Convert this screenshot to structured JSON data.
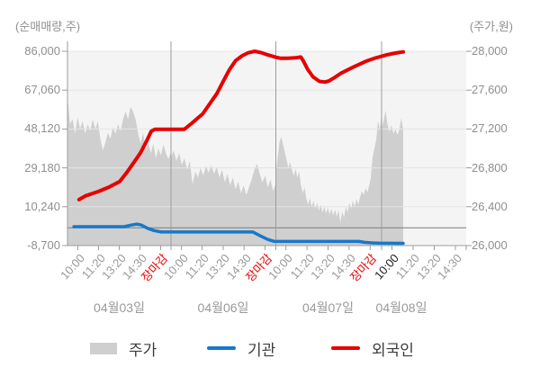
{
  "header": {
    "left_axis_title": "(순매매량,주)",
    "right_axis_title": "(주가,원)"
  },
  "legend": {
    "items": [
      {
        "label": "주가",
        "type": "area",
        "color": "#cfcfcf"
      },
      {
        "label": "기관",
        "type": "line",
        "color": "#1878c8"
      },
      {
        "label": "외국인",
        "type": "line",
        "color": "#e60000"
      }
    ]
  },
  "chart_data": {
    "type": "area+line",
    "title": "",
    "left_axis": {
      "title": "(순매매량,주)",
      "unit": "주",
      "min": -8700,
      "max": 86000,
      "ticks": [
        86000,
        67060,
        48120,
        29180,
        10240,
        -8700
      ]
    },
    "right_axis": {
      "title": "(주가,원)",
      "unit": "원",
      "min": 26000,
      "max": 28000,
      "ticks": [
        28000,
        27600,
        27200,
        26800,
        26400,
        26000
      ]
    },
    "zero_line_value": 0,
    "grid": true,
    "legend_position": "bottom",
    "x_ticks": [
      {
        "u": 0.026,
        "label": "10:00",
        "emphasis": "normal"
      },
      {
        "u": 0.0779,
        "label": "11:20",
        "emphasis": "normal"
      },
      {
        "u": 0.1298,
        "label": "13:20",
        "emphasis": "normal"
      },
      {
        "u": 0.1817,
        "label": "14:30",
        "emphasis": "normal"
      },
      {
        "u": 0.2336,
        "label": "장마감",
        "emphasis": "close"
      },
      {
        "u": 0.2858,
        "label": "10:00",
        "emphasis": "normal"
      },
      {
        "u": 0.3377,
        "label": "11:20",
        "emphasis": "normal"
      },
      {
        "u": 0.3905,
        "label": "13:20",
        "emphasis": "normal"
      },
      {
        "u": 0.4429,
        "label": "14:30",
        "emphasis": "normal"
      },
      {
        "u": 0.4953,
        "label": "장마감",
        "emphasis": "close"
      },
      {
        "u": 0.5478,
        "label": "10:00",
        "emphasis": "normal"
      },
      {
        "u": 0.6007,
        "label": "11:20",
        "emphasis": "normal"
      },
      {
        "u": 0.6535,
        "label": "13:20",
        "emphasis": "normal"
      },
      {
        "u": 0.7063,
        "label": "14:30",
        "emphasis": "normal"
      },
      {
        "u": 0.7591,
        "label": "장마감",
        "emphasis": "close"
      },
      {
        "u": 0.8137,
        "label": "10:00",
        "emphasis": "current"
      },
      {
        "u": 0.8668,
        "label": "11:20",
        "emphasis": "normal"
      },
      {
        "u": 0.9199,
        "label": "13:20",
        "emphasis": "normal"
      },
      {
        "u": 0.973,
        "label": "14:30",
        "emphasis": "normal"
      }
    ],
    "dates": [
      {
        "u": 0.1298,
        "label": "04월03일"
      },
      {
        "u": 0.3905,
        "label": "04월06일"
      },
      {
        "u": 0.6535,
        "label": "04월07일"
      },
      {
        "u": 0.8375,
        "label": "04월08일"
      }
    ],
    "day_separators_u": [
      0.2596,
      0.5226,
      0.7878
    ],
    "data_end_u": 0.842,
    "series": {
      "price": {
        "name": "주가",
        "axis": "right",
        "fill": "#cfcfcf",
        "days": [
          {
            "u0": 0.0,
            "u1": 0.2596,
            "values": [
              27530,
              27250,
              27300,
              27150,
              27320,
              27200,
              27280,
              27150,
              27250,
              27180,
              27300,
              27200,
              27280,
              27100,
              26980,
              27060,
              27160,
              27100,
              27220,
              27150,
              27250,
              27180,
              27300,
              27380,
              27300,
              27430,
              27380,
              27300,
              27150,
              27050,
              27160,
              26980,
              27060,
              26950,
              27050,
              26900,
              27000,
              26930,
              27040,
              26950,
              26890,
              26960
            ]
          },
          {
            "u0": 0.2596,
            "u1": 0.5226,
            "values": [
              26900,
              26980,
              26870,
              26950,
              26830,
              26900,
              26780,
              26870,
              26630,
              26760,
              26700,
              26800,
              26720,
              26820,
              26750,
              26830,
              26740,
              26810,
              26700,
              26780,
              26650,
              26740,
              26620,
              26700,
              26580,
              26660,
              26540,
              26620,
              26520,
              26600,
              26680,
              26780,
              26840,
              26740,
              26650,
              26720,
              26600,
              26680,
              26560,
              26640
            ]
          },
          {
            "u0": 0.5226,
            "u1": 0.7878,
            "values": [
              26750,
              26900,
              27060,
              27120,
              27040,
              26960,
              26880,
              26800,
              26860,
              26780,
              26720,
              26790,
              26700,
              26760,
              26620,
              26540,
              26600,
              26480,
              26420,
              26490,
              26400,
              26460,
              26380,
              26440,
              26360,
              26420,
              26340,
              26400,
              26330,
              26390,
              26320,
              26380,
              26310,
              26370,
              26300,
              26360,
              26240,
              26350,
              26290,
              26400,
              26340,
              26440,
              26380,
              26460,
              26400,
              26480,
              26420,
              26500,
              26560,
              26520,
              26590,
              26550,
              26610,
              26700,
              26910,
              27000,
              27090,
              27280,
              27200,
              27340
            ]
          },
          {
            "u0": 0.7878,
            "u1": 0.842,
            "values": [
              27200,
              27280,
              27390,
              27250,
              27170,
              27240,
              27150,
              27200,
              27140,
              27190,
              27310,
              27200
            ]
          }
        ]
      },
      "institution": {
        "name": "기관",
        "axis": "left",
        "color": "#1878c8",
        "points": [
          [
            0.016,
            500
          ],
          [
            0.142,
            500
          ],
          [
            0.16,
            1300
          ],
          [
            0.174,
            1800
          ],
          [
            0.185,
            1300
          ],
          [
            0.201,
            -300
          ],
          [
            0.217,
            -1400
          ],
          [
            0.235,
            -2100
          ],
          [
            0.465,
            -2100
          ],
          [
            0.483,
            -3900
          ],
          [
            0.501,
            -5600
          ],
          [
            0.517,
            -6600
          ],
          [
            0.533,
            -6700
          ],
          [
            0.731,
            -6700
          ],
          [
            0.745,
            -7100
          ],
          [
            0.763,
            -7400
          ],
          [
            0.781,
            -7500
          ],
          [
            0.842,
            -7600
          ]
        ]
      },
      "foreign": {
        "name": "외국인",
        "axis": "left",
        "color": "#e60000",
        "points": [
          [
            0.029,
            13700
          ],
          [
            0.045,
            15500
          ],
          [
            0.079,
            17800
          ],
          [
            0.104,
            19800
          ],
          [
            0.131,
            22500
          ],
          [
            0.149,
            27000
          ],
          [
            0.167,
            32000
          ],
          [
            0.183,
            36500
          ],
          [
            0.199,
            42500
          ],
          [
            0.21,
            47000
          ],
          [
            0.219,
            48000
          ],
          [
            0.293,
            48000
          ],
          [
            0.309,
            50500
          ],
          [
            0.339,
            55500
          ],
          [
            0.359,
            61000
          ],
          [
            0.375,
            65500
          ],
          [
            0.391,
            71500
          ],
          [
            0.406,
            77000
          ],
          [
            0.422,
            81500
          ],
          [
            0.438,
            83800
          ],
          [
            0.454,
            85300
          ],
          [
            0.47,
            86000
          ],
          [
            0.485,
            85400
          ],
          [
            0.503,
            84200
          ],
          [
            0.524,
            83000
          ],
          [
            0.535,
            82600
          ],
          [
            0.553,
            82600
          ],
          [
            0.571,
            82800
          ],
          [
            0.585,
            83200
          ],
          [
            0.591,
            81500
          ],
          [
            0.603,
            77000
          ],
          [
            0.616,
            73500
          ],
          [
            0.632,
            71300
          ],
          [
            0.646,
            71000
          ],
          [
            0.655,
            71500
          ],
          [
            0.67,
            73200
          ],
          [
            0.686,
            75300
          ],
          [
            0.702,
            76900
          ],
          [
            0.718,
            78400
          ],
          [
            0.734,
            79800
          ],
          [
            0.747,
            81000
          ],
          [
            0.758,
            81800
          ],
          [
            0.772,
            82700
          ],
          [
            0.785,
            83400
          ],
          [
            0.801,
            84300
          ],
          [
            0.817,
            84900
          ],
          [
            0.831,
            85400
          ],
          [
            0.842,
            85700
          ]
        ]
      }
    },
    "colors": {
      "plot_bg": "#f5f4f5",
      "grid": "#e4e4e4",
      "separator": "#9c9c9c",
      "axis_line": "#9c9c9c",
      "zero_line": "#7d7d7d"
    }
  }
}
